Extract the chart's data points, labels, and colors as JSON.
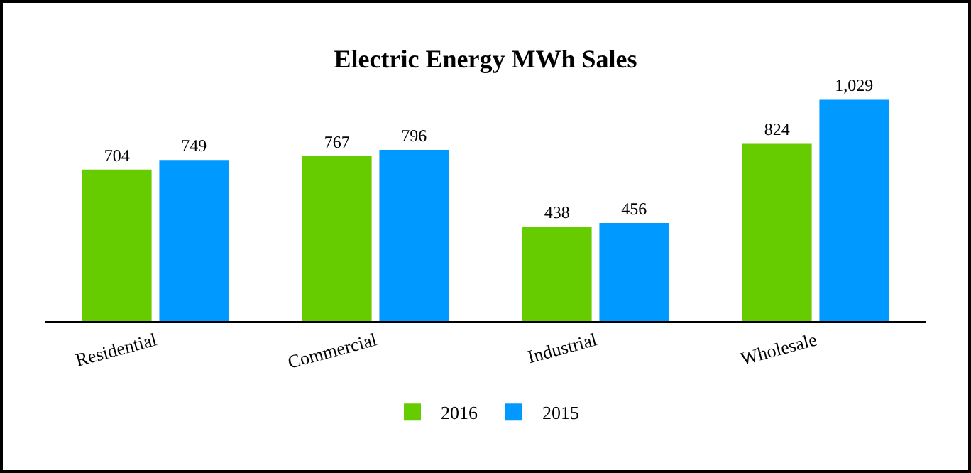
{
  "chart_data": {
    "type": "bar",
    "title": "Electric Energy MWh Sales",
    "categories": [
      "Residential",
      "Commercial",
      "Industrial",
      "Wholesale"
    ],
    "series": [
      {
        "name": "2016",
        "color": "#66cc00",
        "values": [
          704,
          767,
          438,
          824
        ],
        "value_labels": [
          "704",
          "767",
          "438",
          "824"
        ]
      },
      {
        "name": "2015",
        "color": "#0099ff",
        "values": [
          749,
          796,
          456,
          1029
        ],
        "value_labels": [
          "749",
          "796",
          "456",
          "1,029"
        ]
      }
    ],
    "legend": "bottom",
    "grid": false
  }
}
